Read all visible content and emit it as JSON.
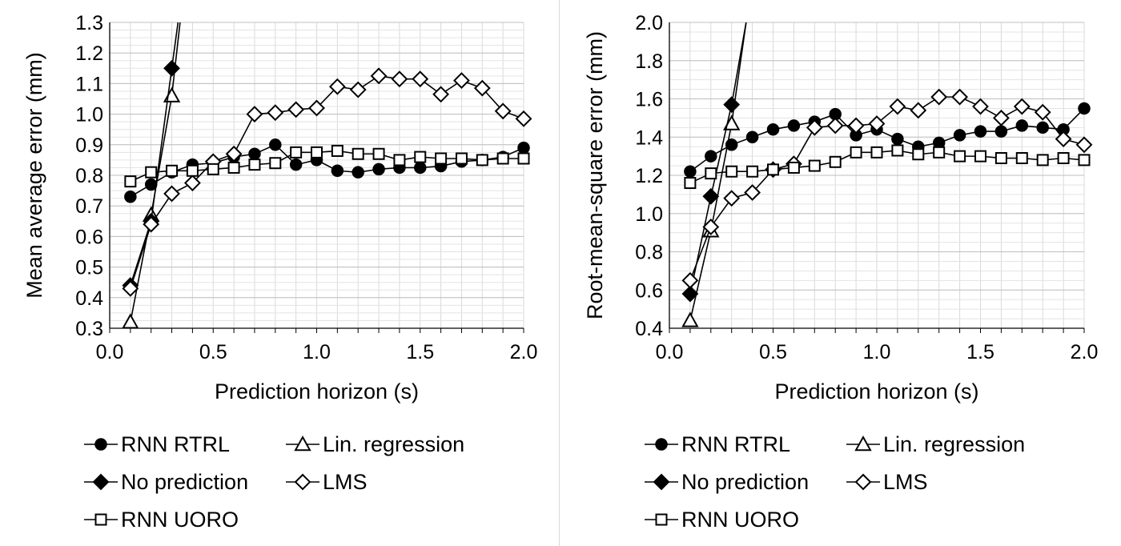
{
  "chart_data": [
    {
      "type": "line",
      "xlabel": "Prediction horizon (s)",
      "ylabel": "Mean average error  (mm)",
      "xlim": [
        0.0,
        2.0
      ],
      "ylim": [
        0.3,
        1.3
      ],
      "x_ticks": [
        "0.0",
        "0.5",
        "1.0",
        "1.5",
        "2.0"
      ],
      "y_ticks": [
        "0.3",
        "0.4",
        "0.5",
        "0.6",
        "0.7",
        "0.8",
        "0.9",
        "1.0",
        "1.1",
        "1.2",
        "1.3"
      ],
      "grid": true,
      "legend_position": "bottom",
      "x": [
        0.1,
        0.2,
        0.3,
        0.4,
        0.5,
        0.6,
        0.7,
        0.8,
        0.9,
        1.0,
        1.1,
        1.2,
        1.3,
        1.4,
        1.5,
        1.6,
        1.7,
        1.8,
        1.9,
        2.0
      ],
      "series": [
        {
          "name": "RNN RTRL",
          "marker": "circle-filled",
          "values": [
            0.73,
            0.77,
            0.81,
            0.835,
            0.84,
            0.86,
            0.87,
            0.9,
            0.835,
            0.85,
            0.815,
            0.81,
            0.82,
            0.825,
            0.825,
            0.83,
            0.845,
            0.85,
            0.86,
            0.89
          ]
        },
        {
          "name": "Lin. regression",
          "marker": "triangle-open",
          "x": [
            0.1,
            0.2,
            0.3,
            0.34
          ],
          "values": [
            0.32,
            0.67,
            1.06,
            1.3
          ]
        },
        {
          "name": "No prediction",
          "marker": "diamond-filled",
          "x": [
            0.1,
            0.2,
            0.3,
            0.33
          ],
          "values": [
            0.44,
            0.65,
            1.15,
            1.3
          ]
        },
        {
          "name": "LMS",
          "marker": "diamond-open",
          "values": [
            0.43,
            0.64,
            0.74,
            0.775,
            0.845,
            0.87,
            1.0,
            1.005,
            1.015,
            1.02,
            1.09,
            1.08,
            1.125,
            1.115,
            1.115,
            1.065,
            1.11,
            1.085,
            1.01,
            0.985
          ]
        },
        {
          "name": "RNN UORO",
          "marker": "square-open",
          "values": [
            0.78,
            0.81,
            0.815,
            0.815,
            0.82,
            0.825,
            0.835,
            0.84,
            0.875,
            0.875,
            0.88,
            0.87,
            0.87,
            0.85,
            0.86,
            0.855,
            0.855,
            0.85,
            0.855,
            0.855
          ]
        }
      ],
      "legend": [
        "RNN RTRL",
        "Lin. regression",
        "No prediction",
        "LMS",
        "RNN UORO"
      ]
    },
    {
      "type": "line",
      "xlabel": "Prediction horizon (s)",
      "ylabel": "Root-mean-square error  (mm)",
      "xlim": [
        0.0,
        2.0
      ],
      "ylim": [
        0.4,
        2.0
      ],
      "x_ticks": [
        "0.0",
        "0.5",
        "1.0",
        "1.5",
        "2.0"
      ],
      "y_ticks": [
        "0.4",
        "0.6",
        "0.8",
        "1.0",
        "1.2",
        "1.4",
        "1.6",
        "1.8",
        "2.0"
      ],
      "grid": true,
      "legend_position": "bottom",
      "x": [
        0.1,
        0.2,
        0.3,
        0.4,
        0.5,
        0.6,
        0.7,
        0.8,
        0.9,
        1.0,
        1.1,
        1.2,
        1.3,
        1.4,
        1.5,
        1.6,
        1.7,
        1.8,
        1.9,
        2.0
      ],
      "series": [
        {
          "name": "RNN RTRL",
          "marker": "circle-filled",
          "values": [
            1.22,
            1.3,
            1.36,
            1.4,
            1.44,
            1.46,
            1.48,
            1.52,
            1.41,
            1.44,
            1.39,
            1.35,
            1.37,
            1.41,
            1.43,
            1.43,
            1.46,
            1.45,
            1.44,
            1.55
          ]
        },
        {
          "name": "Lin. regression",
          "marker": "triangle-open",
          "x": [
            0.1,
            0.2,
            0.3,
            0.37
          ],
          "values": [
            0.44,
            0.91,
            1.47,
            2.0
          ]
        },
        {
          "name": "No prediction",
          "marker": "diamond-filled",
          "x": [
            0.1,
            0.2,
            0.3,
            0.37
          ],
          "values": [
            0.58,
            1.09,
            1.57,
            2.0
          ]
        },
        {
          "name": "LMS",
          "marker": "diamond-open",
          "values": [
            0.65,
            0.93,
            1.08,
            1.11,
            1.23,
            1.26,
            1.45,
            1.46,
            1.46,
            1.47,
            1.56,
            1.54,
            1.61,
            1.61,
            1.56,
            1.5,
            1.56,
            1.53,
            1.39,
            1.36
          ]
        },
        {
          "name": "RNN UORO",
          "marker": "square-open",
          "values": [
            1.16,
            1.21,
            1.22,
            1.22,
            1.23,
            1.24,
            1.25,
            1.27,
            1.32,
            1.32,
            1.33,
            1.31,
            1.32,
            1.3,
            1.3,
            1.29,
            1.29,
            1.28,
            1.29,
            1.28
          ]
        }
      ],
      "legend": [
        "RNN RTRL",
        "Lin. regression",
        "No prediction",
        "LMS",
        "RNN UORO"
      ]
    }
  ]
}
